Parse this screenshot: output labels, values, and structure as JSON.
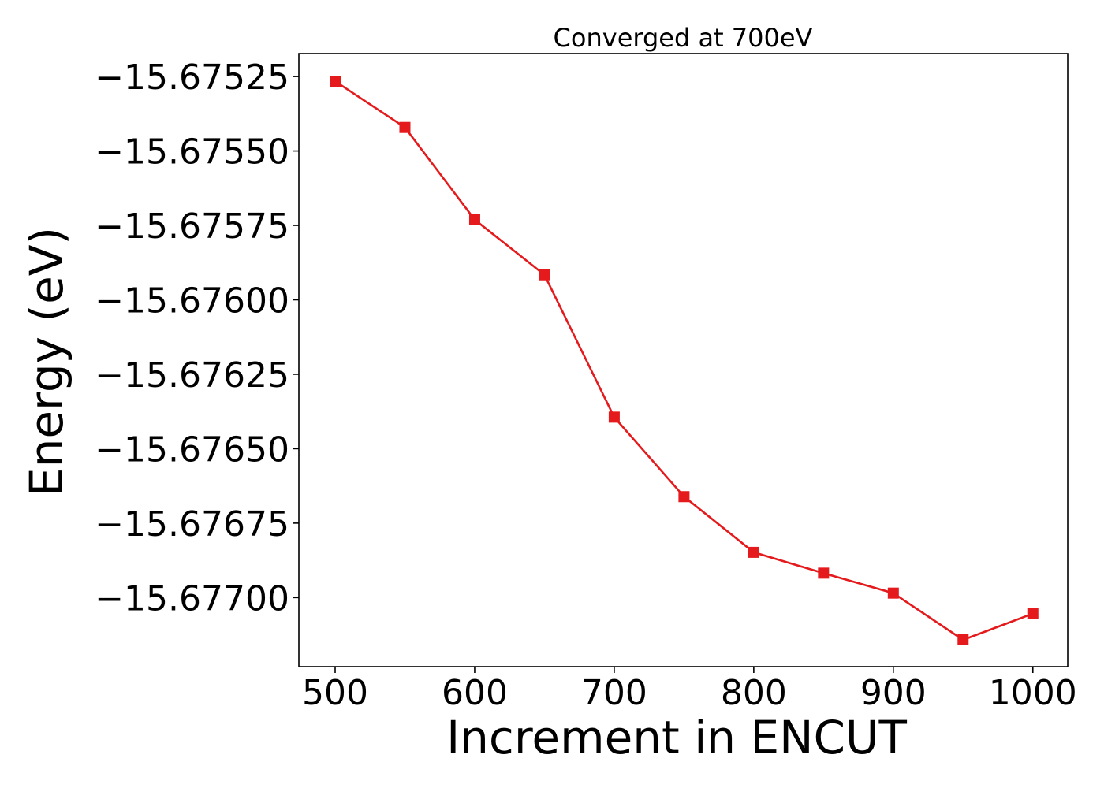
{
  "chart_data": {
    "type": "line",
    "title": "Converged at 700eV",
    "xlabel": "Increment in ENCUT",
    "ylabel": "Energy (eV)",
    "x": [
      500,
      550,
      600,
      650,
      700,
      750,
      800,
      850,
      900,
      950,
      1000
    ],
    "series": [
      {
        "name": "Energy",
        "color": "#e41a1c",
        "marker": "square",
        "values": [
          -15.675266,
          -15.675421,
          -15.675731,
          -15.675916,
          -15.676394,
          -15.676661,
          -15.676848,
          -15.676918,
          -15.676985,
          -15.677142,
          -15.677054
        ]
      }
    ],
    "xticks": [
      500,
      600,
      700,
      800,
      900,
      1000
    ],
    "xtick_labels": [
      "500",
      "600",
      "700",
      "800",
      "900",
      "1000"
    ],
    "yticks": [
      -15.67525,
      -15.6755,
      -15.67575,
      -15.676,
      -15.67625,
      -15.6765,
      -15.67675,
      -15.677
    ],
    "ytick_labels": [
      "−15.67525",
      "−15.67550",
      "−15.67575",
      "−15.67600",
      "−15.67625",
      "−15.67650",
      "−15.67675",
      "−15.67700"
    ],
    "xlim": [
      474,
      1025
    ],
    "ylim": [
      -15.677232,
      -15.675173
    ],
    "grid": false,
    "legend": "none"
  }
}
